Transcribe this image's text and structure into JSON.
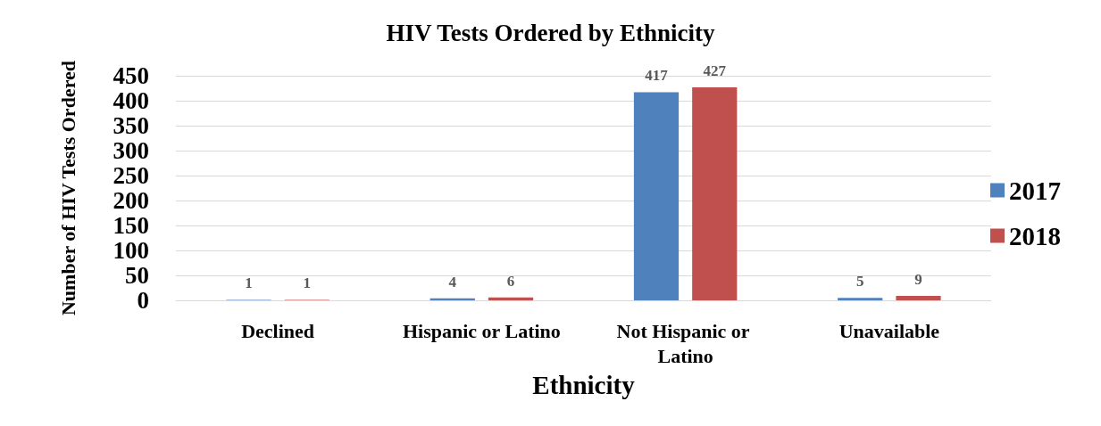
{
  "chart_data": {
    "type": "bar",
    "title": "HIV Tests Ordered by Ethnicity",
    "xlabel": "Ethnicity",
    "ylabel": "Number of HIV Tests Ordered",
    "categories": [
      "Declined",
      "Hispanic or Latino",
      "Not Hispanic or Latino",
      "Unavailable"
    ],
    "series": [
      {
        "name": "2017",
        "color": "#4f81bd",
        "values": [
          1,
          4,
          417,
          5
        ]
      },
      {
        "name": "2018",
        "color": "#c0504d",
        "values": [
          1,
          6,
          427,
          9
        ]
      }
    ],
    "ylim": [
      0,
      450
    ],
    "yticks": [
      0,
      50,
      100,
      150,
      200,
      250,
      300,
      350,
      400,
      450
    ],
    "grid": "y",
    "legend": "right",
    "data_labels": true
  }
}
